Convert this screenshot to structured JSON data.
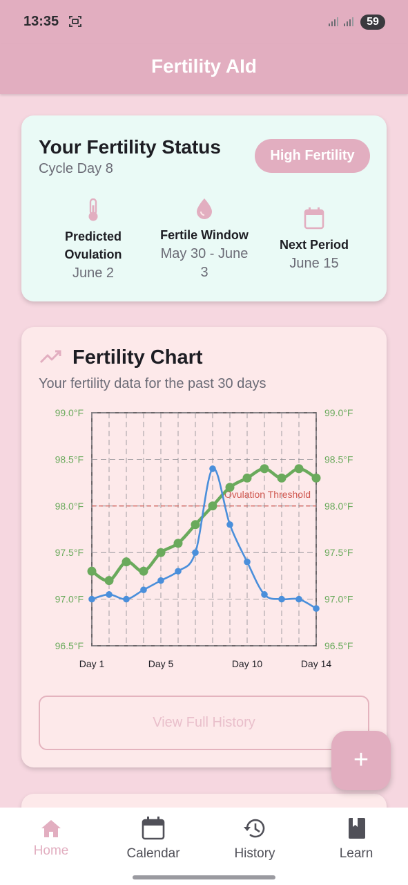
{
  "status_bar": {
    "time": "13:35",
    "battery": "59"
  },
  "app_bar": {
    "title": "Fertility AId"
  },
  "status_card": {
    "title": "Your Fertility Status",
    "cycle_day": "Cycle Day 8",
    "badge": "High Fertility",
    "stats": [
      {
        "icon": "thermometer-icon",
        "label_line1": "Predicted",
        "label_line2": "Ovulation",
        "value": "June 2"
      },
      {
        "icon": "water-drop-icon",
        "label": "Fertile Window",
        "value_line1": "May 30 - June",
        "value_line2": "3"
      },
      {
        "icon": "calendar-icon",
        "label": "Next Period",
        "value": "June 15"
      }
    ]
  },
  "chart_card": {
    "title": "Fertility Chart",
    "subtitle": "Your fertility data for the past 30 days",
    "history_button": "View Full History"
  },
  "chart_data": {
    "type": "line",
    "x": [
      1,
      2,
      3,
      4,
      5,
      6,
      7,
      8,
      9,
      10,
      11,
      12,
      13,
      14
    ],
    "x_tick_labels": [
      {
        "x": 1,
        "label": "Day 1"
      },
      {
        "x": 5,
        "label": "Day 5"
      },
      {
        "x": 10,
        "label": "Day 10"
      },
      {
        "x": 14,
        "label": "Day 14"
      }
    ],
    "series": [
      {
        "values": [
          97.3,
          97.2,
          97.4,
          97.3,
          97.5,
          97.6,
          97.8,
          98.0,
          98.2,
          98.3,
          98.4,
          98.3,
          98.4,
          98.3
        ],
        "color": "#6aaa5c"
      },
      {
        "values": [
          97.0,
          97.05,
          97.0,
          97.1,
          97.2,
          97.3,
          97.5,
          98.4,
          97.8,
          97.4,
          97.05,
          97.0,
          97.0,
          96.9
        ],
        "color": "#4a8fdb"
      }
    ],
    "y_ticks": [
      "96.5°F",
      "97.0°F",
      "97.5°F",
      "98.0°F",
      "98.5°F",
      "99.0°F"
    ],
    "ylim": [
      96.5,
      99.0
    ],
    "threshold": {
      "value": 98.0,
      "label": "Ovulation Threshold",
      "color": "#d0574f"
    },
    "y_tick_color": "#6aaa5c",
    "grid": true
  },
  "fab": {
    "label": "+"
  },
  "bottom_nav": [
    {
      "label": "Home",
      "icon": "home-icon",
      "active": true
    },
    {
      "label": "Calendar",
      "icon": "calendar-icon",
      "active": false
    },
    {
      "label": "History",
      "icon": "history-icon",
      "active": false
    },
    {
      "label": "Learn",
      "icon": "book-icon",
      "active": false
    }
  ],
  "colors": {
    "primary": "#e2aec0",
    "background": "#f6d7e0",
    "status_card": "#eafaf6",
    "chart_card": "#fde9ea"
  }
}
